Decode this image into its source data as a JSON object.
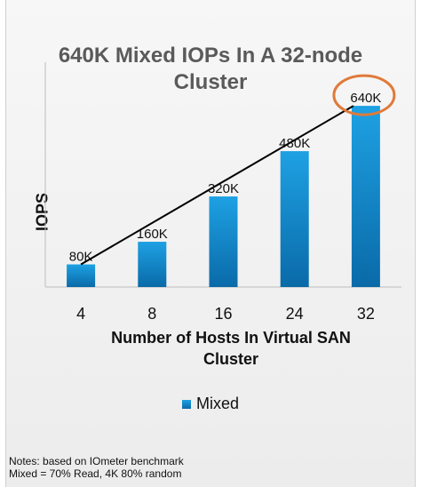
{
  "chart_data": {
    "type": "bar",
    "title_lines": [
      "640K Mixed IOPs In A 32-node",
      "Cluster"
    ],
    "ylabel": "IOPS",
    "xlabel_lines": [
      "Number of Hosts In Virtual SAN",
      "Cluster"
    ],
    "categories": [
      "4",
      "8",
      "16",
      "24",
      "32"
    ],
    "series": [
      {
        "name": "Mixed",
        "values": [
          80,
          160,
          320,
          480,
          640
        ]
      }
    ],
    "data_labels": [
      "80K",
      "160K",
      "320K",
      "480K",
      "640K"
    ],
    "ylim": [
      0,
      700
    ],
    "grid": false,
    "legend_position": "bottom",
    "trend_line": true,
    "highlight_category": "32"
  },
  "colors": {
    "bar_top": "#1ea1e3",
    "bar_bottom": "#0a6aa8",
    "highlight_ring": "#e07a3a",
    "trend_line": "#000000"
  },
  "legend": {
    "label": "Mixed"
  },
  "notes": [
    "Notes: based on IOmeter benchmark",
    "Mixed = 70% Read, 4K 80% random"
  ]
}
